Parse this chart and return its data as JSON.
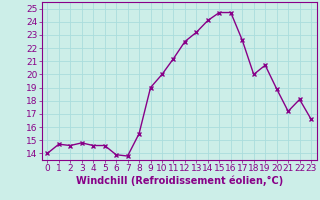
{
  "x": [
    0,
    1,
    2,
    3,
    4,
    5,
    6,
    7,
    8,
    9,
    10,
    11,
    12,
    13,
    14,
    15,
    16,
    17,
    18,
    19,
    20,
    21,
    22,
    23
  ],
  "y": [
    14.0,
    14.7,
    14.6,
    14.8,
    14.6,
    14.6,
    13.9,
    13.8,
    15.5,
    19.0,
    20.0,
    21.2,
    22.5,
    23.2,
    24.1,
    24.7,
    24.7,
    22.6,
    20.0,
    20.7,
    18.9,
    17.2,
    18.1,
    16.6
  ],
  "line_color": "#880088",
  "marker": "x",
  "marker_color": "#880088",
  "marker_size": 3,
  "line_width": 1.0,
  "xlabel": "Windchill (Refroidissement éolien,°C)",
  "xlabel_fontsize": 7,
  "xlabel_color": "#880088",
  "yticks": [
    14,
    15,
    16,
    17,
    18,
    19,
    20,
    21,
    22,
    23,
    24,
    25
  ],
  "xlim": [
    -0.5,
    23.5
  ],
  "ylim": [
    13.5,
    25.5
  ],
  "background_color": "#cceee8",
  "grid_color": "#aadddd",
  "tick_color": "#880088",
  "tick_fontsize": 6.5,
  "spine_color": "#880088"
}
